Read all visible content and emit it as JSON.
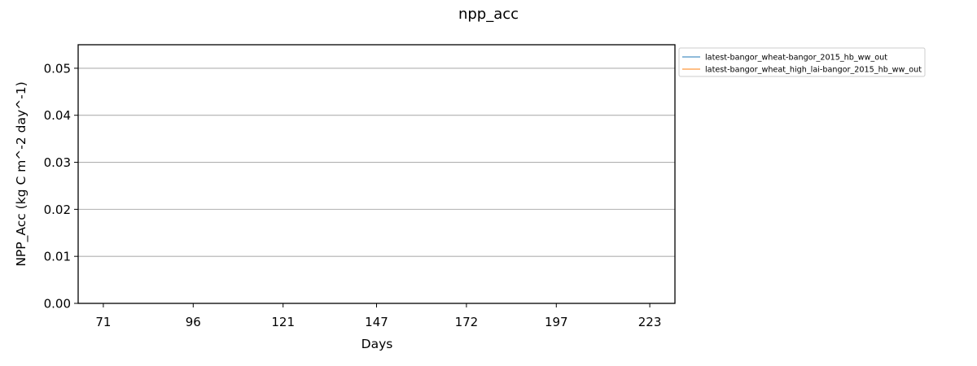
{
  "chart_data": {
    "type": "line",
    "title": "npp_acc",
    "xlabel": "Days",
    "ylabel": "NPP_Acc (kg C m^-2 day^-1)",
    "x_ticks": [
      71,
      96,
      121,
      147,
      172,
      197,
      223
    ],
    "x_tick_labels": [
      "71",
      "96",
      "121",
      "147",
      "172",
      "197",
      "223"
    ],
    "xlim": [
      64,
      230
    ],
    "ylim": [
      0,
      0.055
    ],
    "y_ticks": [
      0.0,
      0.01,
      0.02,
      0.03,
      0.04,
      0.05
    ],
    "y_tick_labels": [
      "0.00",
      "0.01",
      "0.02",
      "0.03",
      "0.04",
      "0.05"
    ],
    "grid": "y-major",
    "legend_placement": "outside-top-right",
    "series": [
      {
        "name": "latest-bangor_wheat-bangor_2015_hb_ww_out",
        "color": "#1f77b4",
        "x": [],
        "y": []
      },
      {
        "name": "latest-bangor_wheat_high_lai-bangor_2015_hb_ww_out",
        "color": "#ff7f0e",
        "x": [],
        "y": []
      }
    ]
  }
}
